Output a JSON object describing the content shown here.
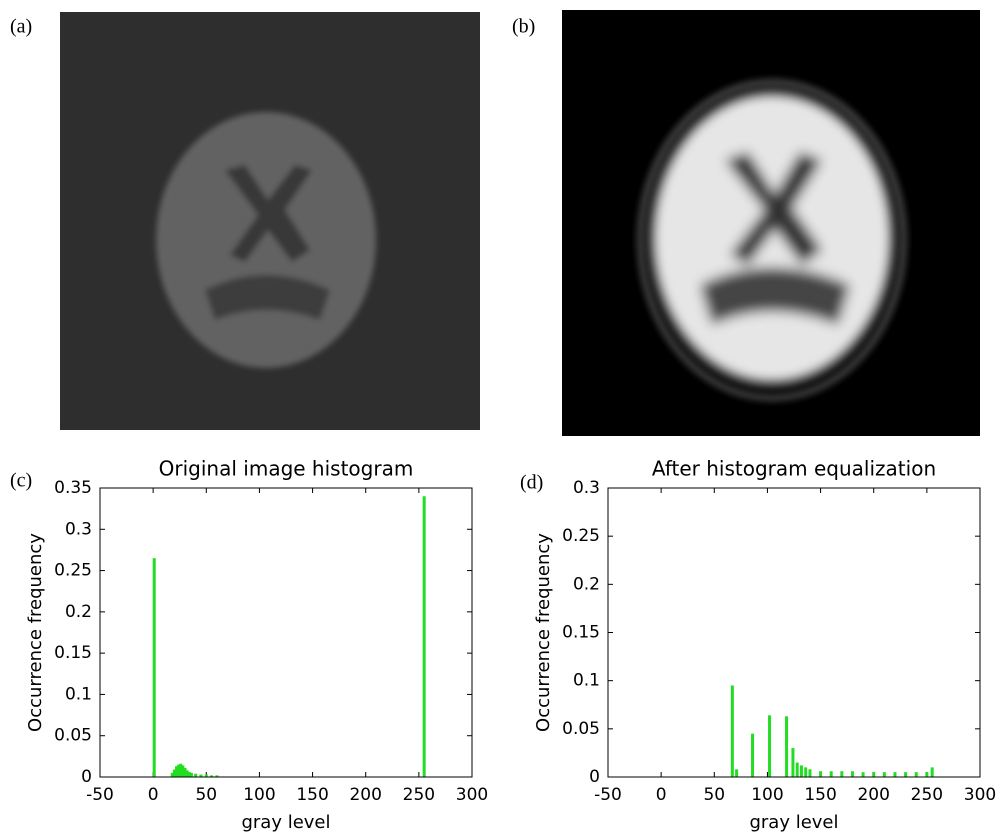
{
  "panel_labels": [
    "(a)",
    "(b)",
    "(c)",
    "(d)"
  ],
  "chart_data": [
    {
      "type": "bar",
      "title": "Original image histogram",
      "x_label": "gray level",
      "y_label": "Occurrence frequency",
      "color": "#22dd22",
      "x": [
        1,
        18,
        20,
        22,
        24,
        26,
        28,
        30,
        32,
        34,
        36,
        40,
        45,
        50,
        55,
        60,
        255
      ],
      "values": [
        0.265,
        0.005,
        0.009,
        0.013,
        0.015,
        0.016,
        0.014,
        0.011,
        0.008,
        0.006,
        0.005,
        0.004,
        0.003,
        0.003,
        0.002,
        0.002,
        0.34
      ],
      "xlim": [
        -50,
        300
      ],
      "xticks": [
        -50,
        0,
        50,
        100,
        150,
        200,
        250,
        300
      ],
      "ylim": [
        0,
        0.35
      ],
      "yticks": [
        0,
        0.05,
        0.1,
        0.15,
        0.2,
        0.25,
        0.3,
        0.35
      ]
    },
    {
      "type": "bar",
      "title": "After histogram equalization",
      "x_label": "gray level",
      "y_label": "Occurrence frequency",
      "color": "#22dd22",
      "x": [
        67,
        71,
        86,
        102,
        118,
        124,
        128,
        132,
        136,
        140,
        150,
        160,
        170,
        180,
        190,
        200,
        210,
        220,
        230,
        240,
        250,
        255
      ],
      "values": [
        0.095,
        0.008,
        0.045,
        0.064,
        0.063,
        0.03,
        0.015,
        0.012,
        0.01,
        0.008,
        0.006,
        0.006,
        0.006,
        0.006,
        0.005,
        0.005,
        0.005,
        0.005,
        0.005,
        0.005,
        0.005,
        0.01
      ],
      "xlim": [
        -50,
        300
      ],
      "xticks": [
        -50,
        0,
        50,
        100,
        150,
        200,
        250,
        300
      ],
      "ylim": [
        0,
        0.3
      ],
      "yticks": [
        0,
        0.05,
        0.1,
        0.15,
        0.2,
        0.25,
        0.3
      ]
    }
  ]
}
